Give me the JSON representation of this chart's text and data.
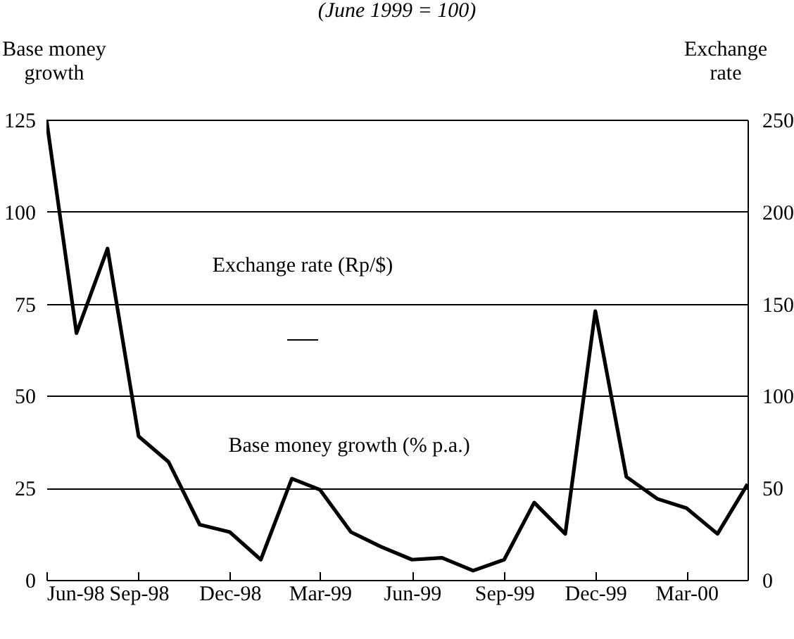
{
  "chart_data": {
    "type": "line",
    "title": "(June 1999 = 100)",
    "ylabel": "Base money growth",
    "y2label": "Exchange rate",
    "annotations": [
      "Exchange rate (Rp/$)",
      "Base money growth  (% p.a.)"
    ],
    "x": [
      "1998-06",
      "1998-07",
      "1998-08",
      "1998-09",
      "1998-10",
      "1998-11",
      "1998-12",
      "1999-01",
      "1999-02",
      "1999-03",
      "1999-04",
      "1999-05",
      "1999-06",
      "1999-07",
      "1999-08",
      "1999-09",
      "1999-10",
      "1999-11",
      "1999-12",
      "2000-01",
      "2000-02",
      "2000-03",
      "2000-04",
      "2000-05"
    ],
    "series": [
      {
        "color": "#000000",
        "values": [
          125,
          67,
          90,
          39,
          32,
          15,
          13,
          5.5,
          27.5,
          24.5,
          13,
          9,
          5.5,
          6,
          2.5,
          5.5,
          21,
          12.5,
          73,
          28,
          22,
          19.5,
          12.5,
          26
        ]
      }
    ],
    "xlim": [
      "1998-06",
      "2000-05"
    ],
    "xticks": [
      {
        "value": "1998-06",
        "label": "Jun-98"
      },
      {
        "value": "1998-09",
        "label": "Sep-98"
      },
      {
        "value": "1998-12",
        "label": "Dec-98"
      },
      {
        "value": "1999-03",
        "label": "Mar-99"
      },
      {
        "value": "1999-06",
        "label": "Jun-99"
      },
      {
        "value": "1999-09",
        "label": "Sep-99"
      },
      {
        "value": "1999-12",
        "label": "Dec-99"
      },
      {
        "value": "2000-03",
        "label": "Mar-00"
      }
    ],
    "ylim": [
      0,
      125
    ],
    "yticks": [
      0,
      25,
      50,
      75,
      100,
      125
    ],
    "y2lim": [
      0,
      250
    ],
    "y2ticks": [
      0,
      50,
      100,
      150,
      200,
      250
    ],
    "grid": "y",
    "line_style": "solid",
    "marker": "none"
  }
}
